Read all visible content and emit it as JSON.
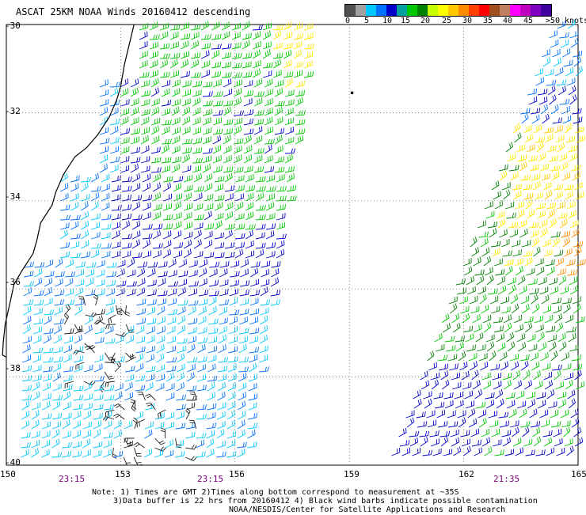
{
  "title": "ASCAT 25KM NOAA Winds 20160412 descending",
  "colorbar": {
    "labels": [
      "0",
      "5",
      "10",
      "15",
      "20",
      "25",
      "30",
      "35",
      "40",
      "45",
      ">50 knots"
    ],
    "colors": [
      "#505050",
      "#a0a0a0",
      "#00c8ff",
      "#0070ff",
      "#0000c8",
      "#00a0a0",
      "#00c800",
      "#008000",
      "#c8ff00",
      "#ffff00",
      "#ffc800",
      "#ff8c00",
      "#ff4000",
      "#ff0000",
      "#a05020",
      "#c08060",
      "#ff00ff",
      "#c000c0",
      "#8000c0",
      "#4000a0"
    ]
  },
  "lat_labels": [
    "-30",
    "-32",
    "-34",
    "-36",
    "-38",
    "-40"
  ],
  "lon_labels": [
    "150",
    "153",
    "156",
    "159",
    "162",
    "165"
  ],
  "pass_times": [
    "23:15",
    "23:15",
    "21:35"
  ],
  "notes": [
    "Note: 1) Times are GMT 2)Times along bottom correspond to measurement at ~35S",
    "3)Data buffer is 22 hrs from 20160412 4) Black wind barbs indicate possible contamination",
    "NOAA/NESDIS/Center for Satellite Applications and Research"
  ],
  "icons": {
    "land": "coastline-map",
    "barbs": "wind-barb-icon"
  }
}
